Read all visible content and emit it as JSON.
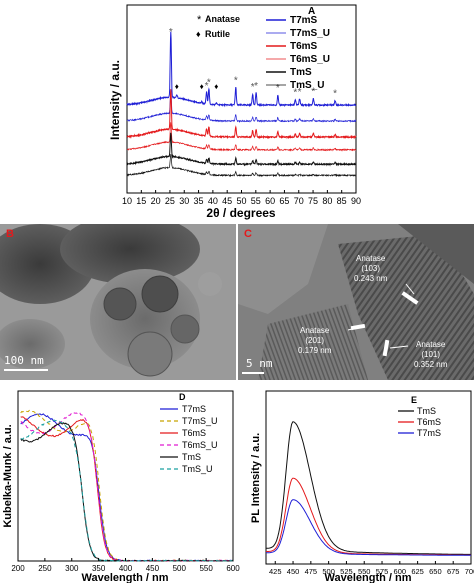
{
  "chart_data": [
    {
      "panel": "A",
      "type": "line",
      "xlabel": "2θ / degrees",
      "ylabel": "Intensity / a.u.",
      "xlim": [
        10,
        90
      ],
      "xticks": [
        10,
        15,
        20,
        25,
        30,
        35,
        40,
        45,
        50,
        55,
        60,
        65,
        70,
        75,
        80,
        85,
        90
      ],
      "markers": {
        "anatase": "Anatase",
        "rutile": "Rutile"
      },
      "anatase_peaks": [
        25.3,
        37.8,
        38.6,
        48.0,
        53.9,
        55.1,
        62.7,
        68.8,
        70.3,
        75.1,
        82.7
      ],
      "rutile_peaks": [
        27.4,
        36.1,
        41.2
      ],
      "series": [
        {
          "name": "T7mS",
          "color": "#1f1fd6",
          "offset": 5.0,
          "scale": 1.0,
          "rutile": 1
        },
        {
          "name": "T7mS_U",
          "color": "#1f1fd6",
          "offset": 4.0,
          "scale": 0.35,
          "rutile": 0
        },
        {
          "name": "T6mS",
          "color": "#e41a1c",
          "offset": 3.0,
          "scale": 0.6,
          "rutile": 0
        },
        {
          "name": "T6mS_U",
          "color": "#e41a1c",
          "offset": 2.2,
          "scale": 0.3,
          "rutile": 0
        },
        {
          "name": "TmS",
          "color": "#111111",
          "offset": 1.3,
          "scale": 0.35,
          "rutile": 0
        },
        {
          "name": "TmS_U",
          "color": "#111111",
          "offset": 0.6,
          "scale": 0.2,
          "rutile": 0
        }
      ]
    },
    {
      "panel": "D",
      "type": "line",
      "xlabel": "Wavelength / nm",
      "ylabel": "Kubelka-Munk / a.u.",
      "xlim": [
        200,
        600
      ],
      "xticks": [
        200,
        250,
        300,
        350,
        400,
        450,
        500,
        550,
        600
      ],
      "series": [
        {
          "name": "T7mS",
          "color": "#1f1fd6",
          "dash": "",
          "edge": 372,
          "peak": 0.93
        },
        {
          "name": "T7mS_U",
          "color": "#c8a400",
          "dash": "4,3",
          "edge": 373,
          "peak": 0.95
        },
        {
          "name": "T6mS",
          "color": "#e41a1c",
          "dash": "",
          "edge": 370,
          "peak": 0.92
        },
        {
          "name": "T6mS_U",
          "color": "#e01bd0",
          "dash": "4,3",
          "edge": 371,
          "peak": 0.94
        },
        {
          "name": "TmS",
          "color": "#111111",
          "dash": "",
          "edge": 342,
          "peak": 0.88
        },
        {
          "name": "TmS_U",
          "color": "#1aa0a0",
          "dash": "4,3",
          "edge": 343,
          "peak": 0.89
        }
      ]
    },
    {
      "panel": "E",
      "type": "line",
      "xlabel": "Wavelength / nm",
      "ylabel": "PL Intensity / a.u.",
      "xlim": [
        412,
        700
      ],
      "xticks": [
        425,
        450,
        475,
        500,
        525,
        550,
        575,
        600,
        625,
        650,
        675,
        700
      ],
      "series": [
        {
          "name": "TmS",
          "color": "#111111",
          "peak": 450,
          "amp": 1.0
        },
        {
          "name": "T6mS",
          "color": "#e41a1c",
          "peak": 450,
          "amp": 0.58
        },
        {
          "name": "T7mS",
          "color": "#1f1fd6",
          "peak": 450,
          "amp": 0.42
        }
      ]
    }
  ],
  "tem": {
    "b": {
      "letter": "B",
      "scale": "100 nm"
    },
    "c": {
      "letter": "C",
      "scale": "5 nm",
      "annotations": [
        {
          "line1": "Anatase",
          "line2": "(103)",
          "line3": "0.243 nm"
        },
        {
          "line1": "Anatase",
          "line2": "(201)",
          "line3": "0.179 nm"
        },
        {
          "line1": "Anatase",
          "line2": "(101)",
          "line3": "0.352 nm"
        }
      ]
    }
  }
}
